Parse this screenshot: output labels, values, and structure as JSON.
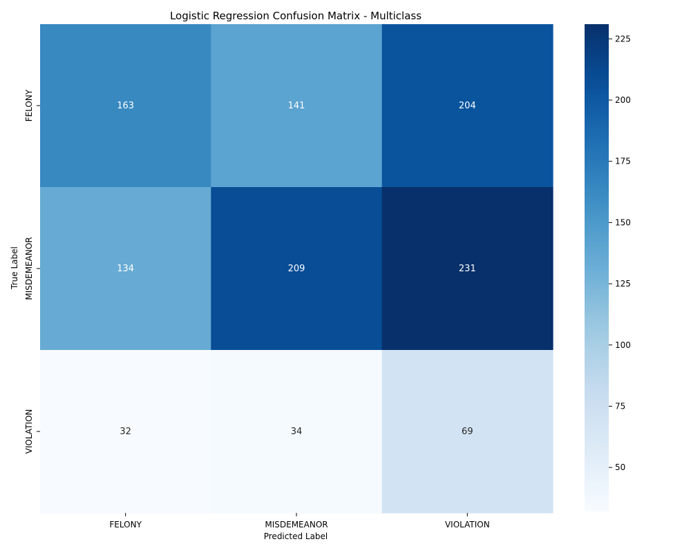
{
  "chart_data": {
    "type": "heatmap",
    "title": "Logistic Regression Confusion Matrix - Multiclass",
    "xlabel": "Predicted Label",
    "ylabel": "True Label",
    "row_labels": [
      "FELONY",
      "MISDEMEANOR",
      "VIOLATION"
    ],
    "col_labels": [
      "FELONY",
      "MISDEMEANOR",
      "VIOLATION"
    ],
    "values": [
      [
        163,
        141,
        204
      ],
      [
        134,
        209,
        231
      ],
      [
        32,
        34,
        69
      ]
    ],
    "colormap": "Blues",
    "colorbar": {
      "range": [
        32,
        231
      ],
      "ticks": [
        50,
        75,
        100,
        125,
        150,
        175,
        200,
        225
      ]
    },
    "grid": false,
    "legend": "none"
  }
}
